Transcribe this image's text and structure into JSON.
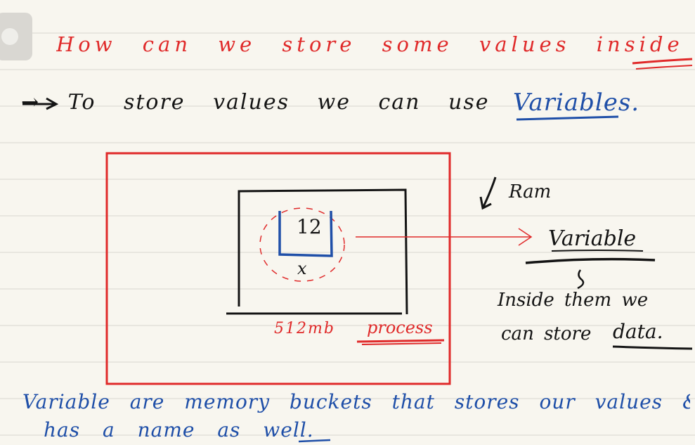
{
  "note": {
    "heading_line1": "How can we store some values inside a program",
    "line2_prefix": "→ To store values we can use",
    "line2_emphasis": "Variables.",
    "ram_label": "Ram",
    "box_value": "12",
    "variable_name": "x",
    "process_size": "512mb",
    "process_label": "process",
    "variable_label": "Variable",
    "inside_line1": "Inside them we",
    "inside_line2": "can store",
    "inside_line3": "data.",
    "footer_line1": "Variable are memory buckets that stores our values &",
    "footer_line2": "has a name as well."
  },
  "colors": {
    "paper": "#f8f6ef",
    "rule": "#d8d6cf",
    "red_ink": "#e02a2a",
    "blue_ink": "#1f4fa8",
    "black_ink": "#141414"
  }
}
